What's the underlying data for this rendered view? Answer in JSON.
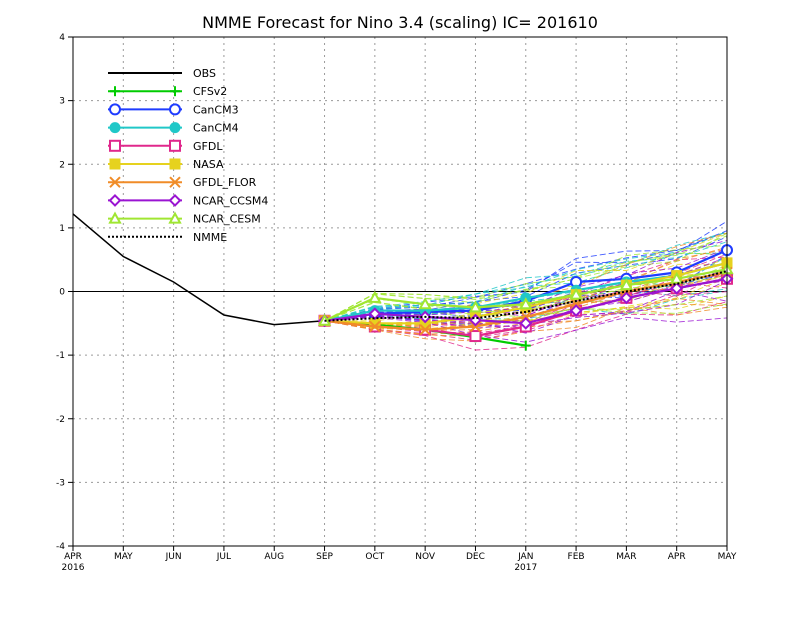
{
  "chart_data": {
    "type": "line",
    "title": "NMME Forecast for Nino 3.4 (scaling) IC= 201610",
    "x_labels": [
      "APR",
      "MAY",
      "JUN",
      "JUL",
      "AUG",
      "SEP",
      "OCT",
      "NOV",
      "DEC",
      "JAN",
      "FEB",
      "MAR",
      "APR",
      "MAY"
    ],
    "x_year_labels": [
      {
        "index": 0,
        "text": "2016"
      },
      {
        "index": 9,
        "text": "2017"
      }
    ],
    "yticks": [
      "-4",
      "-3",
      "-2",
      "-1",
      "0",
      "1",
      "2",
      "3",
      "4"
    ],
    "ylim": [
      -4,
      4
    ],
    "xlim": [
      0,
      13
    ],
    "grid": true,
    "legend_position": "top-left",
    "series": [
      {
        "name": "OBS",
        "color": "#000000",
        "marker": "none",
        "dash": "solid",
        "x": [
          0,
          1,
          2,
          3,
          4,
          5
        ],
        "values": [
          1.22,
          0.55,
          0.15,
          -0.37,
          -0.52,
          -0.46
        ]
      },
      {
        "name": "CFSv2",
        "color": "#00cc00",
        "marker": "plus",
        "dash": "solid",
        "x": [
          5,
          6,
          7,
          8,
          9
        ],
        "values": [
          -0.46,
          -0.52,
          -0.6,
          -0.72,
          -0.85
        ]
      },
      {
        "name": "CanCM3",
        "color": "#1f3cff",
        "marker": "circle-open",
        "dash": "solid",
        "x": [
          5,
          6,
          7,
          8,
          9,
          10,
          11,
          12,
          13
        ],
        "values": [
          -0.46,
          -0.35,
          -0.32,
          -0.3,
          -0.15,
          0.15,
          0.2,
          0.3,
          0.65
        ]
      },
      {
        "name": "CanCM4",
        "color": "#20c8c8",
        "marker": "circle-filled",
        "dash": "solid",
        "x": [
          5,
          6,
          7,
          8,
          9,
          10,
          11,
          12,
          13
        ],
        "values": [
          -0.46,
          -0.3,
          -0.3,
          -0.25,
          -0.1,
          0.02,
          0.15,
          0.25,
          0.45
        ]
      },
      {
        "name": "GFDL",
        "color": "#e0288c",
        "marker": "square-open",
        "dash": "solid",
        "x": [
          5,
          6,
          7,
          8,
          9,
          10,
          11,
          12,
          13
        ],
        "values": [
          -0.46,
          -0.55,
          -0.6,
          -0.7,
          -0.55,
          -0.3,
          -0.1,
          0.05,
          0.2
        ]
      },
      {
        "name": "NASA",
        "color": "#e6d21e",
        "marker": "square-filled",
        "dash": "solid",
        "x": [
          5,
          6,
          7,
          8,
          9,
          10,
          11,
          12,
          13
        ],
        "values": [
          -0.46,
          -0.5,
          -0.5,
          -0.4,
          -0.25,
          -0.05,
          0.1,
          0.25,
          0.45
        ]
      },
      {
        "name": "GFDL_FLOR",
        "color": "#f08c28",
        "marker": "x",
        "dash": "solid",
        "x": [
          5,
          6,
          7,
          8,
          9,
          10,
          11,
          12,
          13
        ],
        "values": [
          -0.46,
          -0.55,
          -0.6,
          -0.55,
          -0.4,
          -0.2,
          0.0,
          0.15,
          0.3
        ]
      },
      {
        "name": "NCAR_CCSM4",
        "color": "#9a14d2",
        "marker": "diamond-open",
        "dash": "solid",
        "x": [
          5,
          6,
          7,
          8,
          9,
          10,
          11,
          12,
          13
        ],
        "values": [
          -0.46,
          -0.35,
          -0.4,
          -0.45,
          -0.5,
          -0.3,
          -0.1,
          0.05,
          0.2
        ]
      },
      {
        "name": "NCAR_CESM",
        "color": "#a0e632",
        "marker": "triangle-open",
        "dash": "solid",
        "x": [
          5,
          6,
          7,
          8,
          9,
          10,
          11,
          12,
          13
        ],
        "values": [
          -0.46,
          -0.1,
          -0.2,
          -0.25,
          -0.2,
          -0.05,
          0.1,
          0.2,
          0.35
        ]
      },
      {
        "name": "NMME",
        "color": "#000000",
        "marker": "none",
        "dash": "dotted",
        "x": [
          5,
          6,
          7,
          8,
          9,
          10,
          11,
          12,
          13
        ],
        "values": [
          -0.46,
          -0.42,
          -0.4,
          -0.42,
          -0.32,
          -0.15,
          0.0,
          0.12,
          0.32
        ]
      }
    ]
  }
}
